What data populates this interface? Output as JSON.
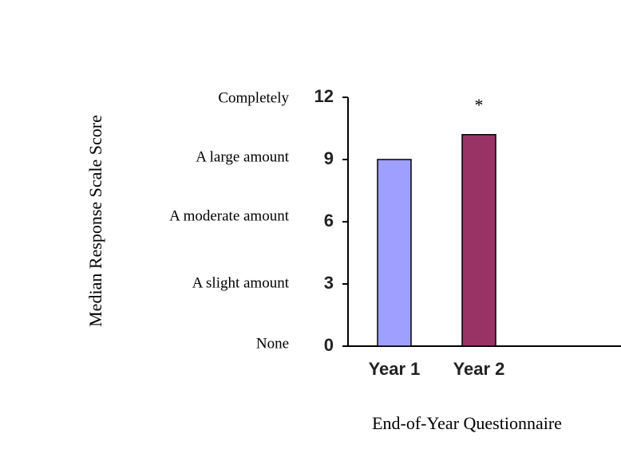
{
  "chart_data": {
    "type": "bar",
    "categories": [
      "Year 1",
      "Year 2"
    ],
    "values": [
      9,
      10.2
    ],
    "colors": [
      "#9f9fff",
      "#993366"
    ],
    "annotations": [
      {
        "category": "Year 2",
        "text": "*"
      }
    ],
    "xlabel": "End-of-Year Questionnaire",
    "ylabel": "Median Response Scale Score",
    "ylim": [
      0,
      12
    ],
    "yticks": [
      0,
      3,
      6,
      9,
      12
    ],
    "scale_labels": [
      "None",
      "A slight amount",
      "A moderate amount",
      "A large amount",
      "Completely"
    ],
    "grid": false
  }
}
